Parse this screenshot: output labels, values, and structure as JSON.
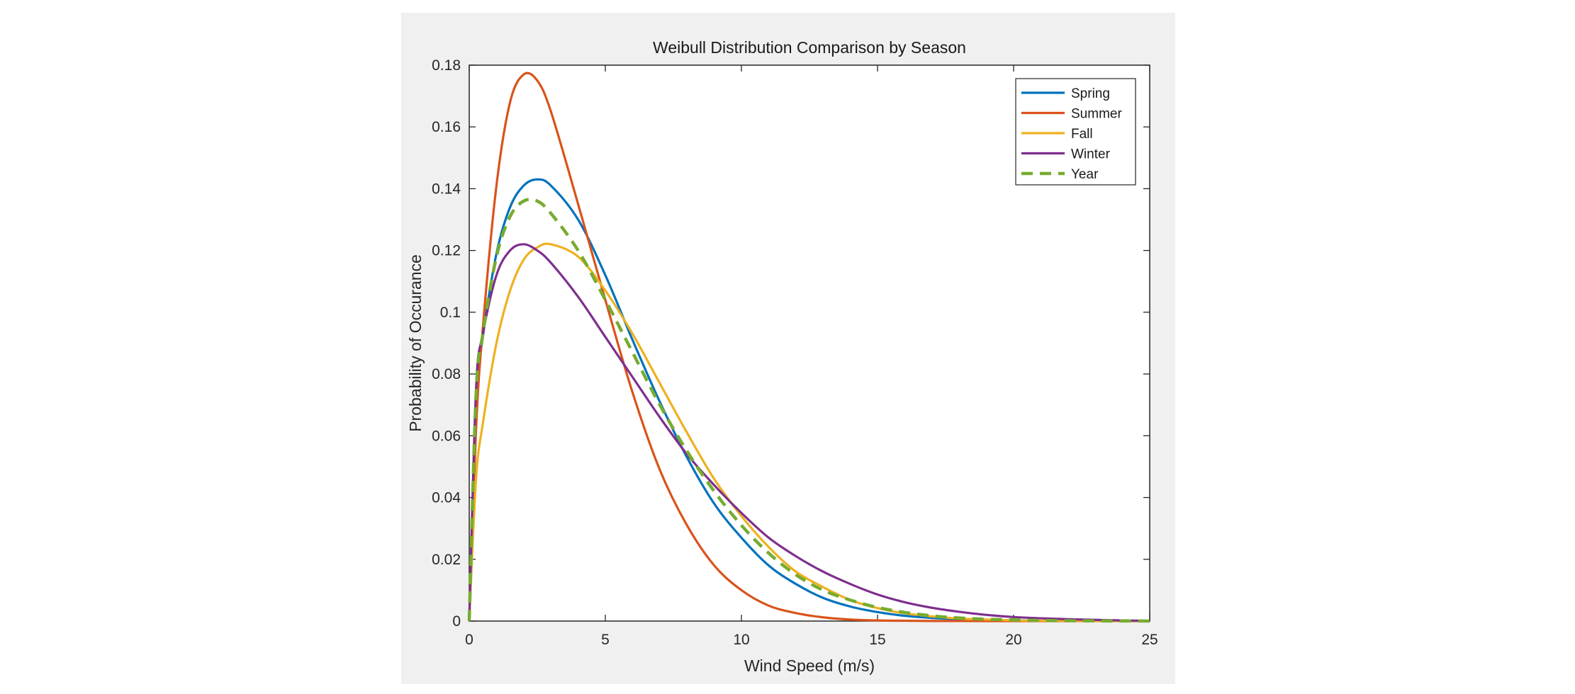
{
  "colors": {
    "figure_background": "#f0f0f0",
    "plot_background": "#ffffff",
    "axes": "#262626"
  },
  "chart_data": {
    "type": "line",
    "title": "Weibull Distribution Comparison by Season",
    "xlabel": "Wind Speed (m/s)",
    "ylabel": "Probability of Occurance",
    "xlim": [
      0,
      25
    ],
    "ylim": [
      0,
      0.18
    ],
    "xticks": [
      0,
      5,
      10,
      15,
      20,
      25
    ],
    "xtick_labels": [
      "0",
      "5",
      "10",
      "15",
      "20",
      "25"
    ],
    "yticks": [
      0,
      0.02,
      0.04,
      0.06,
      0.08,
      0.1,
      0.12,
      0.14,
      0.16,
      0.18
    ],
    "ytick_labels": [
      "0",
      "0.02",
      "0.04",
      "0.06",
      "0.08",
      "0.1",
      "0.12",
      "0.14",
      "0.16",
      "0.18"
    ],
    "grid": false,
    "legend_position": "top-right",
    "x": [
      0,
      0.25,
      0.5,
      1,
      1.5,
      2,
      2.5,
      3,
      4,
      5,
      6,
      7,
      8,
      9,
      10,
      11,
      12,
      13,
      14,
      15,
      16,
      17,
      18,
      19,
      20,
      21,
      22,
      23,
      24,
      25
    ],
    "series": [
      {
        "name": "Spring",
        "color": "#0072BD",
        "style": "solid",
        "values": [
          0,
          0.07,
          0.092,
          0.119,
          0.134,
          0.141,
          0.143,
          0.141,
          0.13,
          0.112,
          0.091,
          0.071,
          0.053,
          0.038,
          0.027,
          0.018,
          0.012,
          0.0075,
          0.0047,
          0.0029,
          0.0017,
          0.001,
          0.0006,
          0.0003,
          0.0002,
          0.0001,
          5e-05,
          3e-05,
          1e-05,
          0
        ]
      },
      {
        "name": "Summer",
        "color": "#D95319",
        "style": "solid",
        "values": [
          0,
          0.062,
          0.095,
          0.141,
          0.168,
          0.177,
          0.175,
          0.165,
          0.135,
          0.104,
          0.074,
          0.049,
          0.031,
          0.018,
          0.01,
          0.005,
          0.0026,
          0.0012,
          0.0005,
          0.0002,
          0.0001,
          3e-05,
          1e-05,
          0,
          0,
          0,
          0,
          0,
          0,
          0
        ]
      },
      {
        "name": "Fall",
        "color": "#EDB120",
        "style": "solid",
        "values": [
          0,
          0.046,
          0.064,
          0.09,
          0.107,
          0.117,
          0.121,
          0.122,
          0.118,
          0.107,
          0.093,
          0.077,
          0.061,
          0.046,
          0.034,
          0.024,
          0.016,
          0.011,
          0.0068,
          0.0042,
          0.0025,
          0.0015,
          0.0008,
          0.0005,
          0.0002,
          0.0001,
          6e-05,
          3e-05,
          1e-05,
          0
        ]
      },
      {
        "name": "Winter",
        "color": "#7E2F8E",
        "style": "solid",
        "values": [
          0,
          0.075,
          0.093,
          0.112,
          0.12,
          0.122,
          0.12,
          0.116,
          0.105,
          0.092,
          0.079,
          0.066,
          0.054,
          0.044,
          0.035,
          0.027,
          0.021,
          0.016,
          0.012,
          0.0086,
          0.0061,
          0.0043,
          0.003,
          0.002,
          0.0013,
          0.0009,
          0.0006,
          0.0004,
          0.0002,
          0.0001
        ]
      },
      {
        "name": "Year",
        "color": "#77AC30",
        "style": "dashed",
        "values": [
          0,
          0.073,
          0.093,
          0.118,
          0.131,
          0.136,
          0.136,
          0.132,
          0.12,
          0.104,
          0.087,
          0.07,
          0.055,
          0.042,
          0.031,
          0.022,
          0.015,
          0.01,
          0.0068,
          0.0044,
          0.0028,
          0.0017,
          0.001,
          0.0006,
          0.0004,
          0.0002,
          0.0001,
          6e-05,
          3e-05,
          1e-05
        ]
      }
    ]
  }
}
